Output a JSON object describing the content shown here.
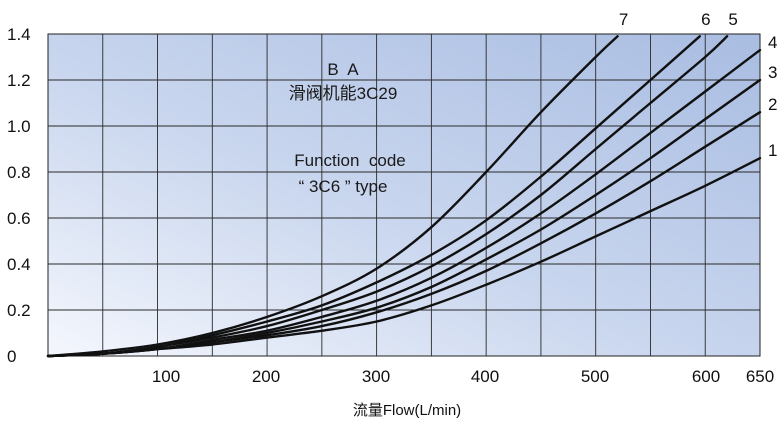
{
  "chart_data": {
    "type": "line",
    "xlabel": "流量Flow(L/min)",
    "ylabel": "",
    "xlim": [
      0,
      650
    ],
    "ylim": [
      0,
      1.4
    ],
    "x_ticks": [
      100,
      200,
      300,
      400,
      500,
      600,
      650
    ],
    "y_ticks": [
      "0",
      "0.2",
      "0.4",
      "0.6",
      "0.8",
      "1.0",
      "1.2",
      "1.4"
    ],
    "grid": true,
    "annotations": [
      "B  A",
      "滑阀机能3C29",
      "Function  code",
      "“ 3C6 ” type"
    ],
    "series": [
      {
        "name": "1",
        "x": [
          0,
          50,
          100,
          150,
          200,
          250,
          300,
          350,
          400,
          450,
          500,
          550,
          600,
          650
        ],
        "values": [
          0,
          0.01,
          0.03,
          0.05,
          0.08,
          0.11,
          0.15,
          0.22,
          0.31,
          0.41,
          0.52,
          0.63,
          0.74,
          0.86
        ]
      },
      {
        "name": "2",
        "x": [
          0,
          50,
          100,
          150,
          200,
          250,
          300,
          350,
          400,
          450,
          500,
          550,
          600,
          650
        ],
        "values": [
          0,
          0.01,
          0.03,
          0.06,
          0.09,
          0.13,
          0.19,
          0.27,
          0.37,
          0.49,
          0.62,
          0.76,
          0.91,
          1.06
        ]
      },
      {
        "name": "3",
        "x": [
          0,
          50,
          100,
          150,
          200,
          250,
          300,
          350,
          400,
          450,
          500,
          550,
          600,
          650
        ],
        "values": [
          0,
          0.01,
          0.03,
          0.06,
          0.1,
          0.15,
          0.21,
          0.3,
          0.42,
          0.55,
          0.7,
          0.86,
          1.03,
          1.2
        ]
      },
      {
        "name": "4",
        "x": [
          0,
          50,
          100,
          150,
          200,
          250,
          300,
          350,
          400,
          450,
          500,
          550,
          600,
          650
        ],
        "values": [
          0,
          0.01,
          0.03,
          0.07,
          0.11,
          0.17,
          0.24,
          0.34,
          0.47,
          0.62,
          0.79,
          0.97,
          1.15,
          1.33
        ]
      },
      {
        "name": "5",
        "x": [
          0,
          50,
          100,
          150,
          200,
          250,
          300,
          350,
          400,
          450,
          500,
          550,
          600,
          620
        ],
        "values": [
          0,
          0.01,
          0.04,
          0.08,
          0.13,
          0.2,
          0.28,
          0.39,
          0.53,
          0.7,
          0.9,
          1.1,
          1.3,
          1.39
        ]
      },
      {
        "name": "6",
        "x": [
          0,
          50,
          100,
          150,
          200,
          250,
          300,
          350,
          400,
          450,
          500,
          550,
          595
        ],
        "values": [
          0,
          0.01,
          0.04,
          0.09,
          0.15,
          0.22,
          0.32,
          0.44,
          0.59,
          0.78,
          0.99,
          1.2,
          1.39
        ]
      },
      {
        "name": "7",
        "x": [
          0,
          50,
          100,
          150,
          200,
          250,
          300,
          350,
          400,
          450,
          500,
          520
        ],
        "values": [
          0,
          0.02,
          0.05,
          0.1,
          0.17,
          0.26,
          0.38,
          0.56,
          0.8,
          1.06,
          1.3,
          1.39
        ]
      }
    ]
  }
}
